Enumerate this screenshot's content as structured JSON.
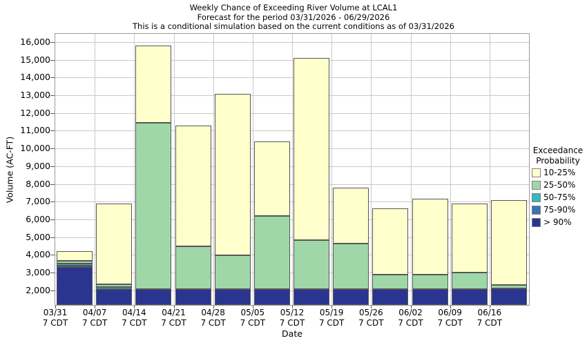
{
  "titles": [
    "Weekly Chance of Exceeding River Volume at LCAL1",
    "Forecast for the period 03/31/2026 - 06/29/2026",
    "This is a conditional simulation based on the current conditions as of 03/31/2026"
  ],
  "y_axis": {
    "label": "Volume (AC-FT)",
    "tick_values": [
      2000,
      3000,
      4000,
      5000,
      6000,
      7000,
      8000,
      9000,
      10000,
      11000,
      12000,
      13000,
      14000,
      15000,
      16000
    ],
    "tick_labels": [
      "2,000",
      "3,000",
      "4,000",
      "5,000",
      "6,000",
      "7,000",
      "8,000",
      "9,000",
      "10,000",
      "11,000",
      "12,000",
      "13,000",
      "14,000",
      "15,000",
      "16,000"
    ]
  },
  "x_axis": {
    "label": "Date",
    "tick_dates": [
      "03/31",
      "04/07",
      "04/14",
      "04/21",
      "04/28",
      "05/05",
      "05/12",
      "05/19",
      "05/26",
      "06/02",
      "06/09",
      "06/16"
    ],
    "tick_sub": "7 CDT"
  },
  "legend": {
    "title_lines": [
      "Exceedance",
      "Probability"
    ],
    "items": [
      {
        "label": "10-25%",
        "color": "#ffffcc"
      },
      {
        "label": "25-50%",
        "color": "#9fd7a8"
      },
      {
        "label": "50-75%",
        "color": "#3ab5c1"
      },
      {
        "label": "75-90%",
        "color": "#3a72b4"
      },
      {
        "label": "> 90%",
        "color": "#2a3590"
      }
    ]
  },
  "chart_data": {
    "type": "bar",
    "stacked": true,
    "unit": "AC-FT",
    "title": "Weekly Chance of Exceeding River Volume at LCAL1",
    "xlabel": "Date",
    "ylabel": "Volume (AC-FT)",
    "grid": true,
    "legend_position": "right",
    "categories": [
      "03/31",
      "04/07",
      "04/14",
      "04/21",
      "04/28",
      "05/05",
      "05/12",
      "05/19",
      "05/26",
      "06/02",
      "06/09",
      "06/16"
    ],
    "baseline": 1170,
    "ylim_render": [
      1170,
      16465
    ],
    "ylim_labeled": [
      2000,
      16000
    ],
    "series": [
      {
        "name": "> 90%",
        "color": "#2a3590",
        "cumulative_tops": [
          3300,
          2060,
          2050,
          2060,
          2060,
          2060,
          2060,
          2060,
          2080,
          2080,
          2080,
          2100
        ]
      },
      {
        "name": "75-90%",
        "color": "#3a72b4",
        "cumulative_tops": [
          3400,
          2060,
          2050,
          2060,
          2060,
          2060,
          2060,
          2060,
          2080,
          2080,
          2080,
          2100
        ]
      },
      {
        "name": "50-75%",
        "color": "#3ab5c1",
        "cumulative_tops": [
          3500,
          2170,
          2050,
          2060,
          2060,
          2060,
          2060,
          2060,
          2080,
          2080,
          2080,
          2100
        ]
      },
      {
        "name": "25-50%",
        "color": "#9fd7a8",
        "cumulative_tops": [
          3670,
          2350,
          11430,
          4460,
          3980,
          6200,
          4830,
          4650,
          2890,
          2890,
          2990,
          2280
        ]
      },
      {
        "name": "10-25%",
        "color": "#ffffcc",
        "cumulative_tops": [
          4200,
          6900,
          15790,
          11280,
          13060,
          10400,
          15120,
          7800,
          6620,
          7170,
          6900,
          7100
        ]
      }
    ]
  }
}
